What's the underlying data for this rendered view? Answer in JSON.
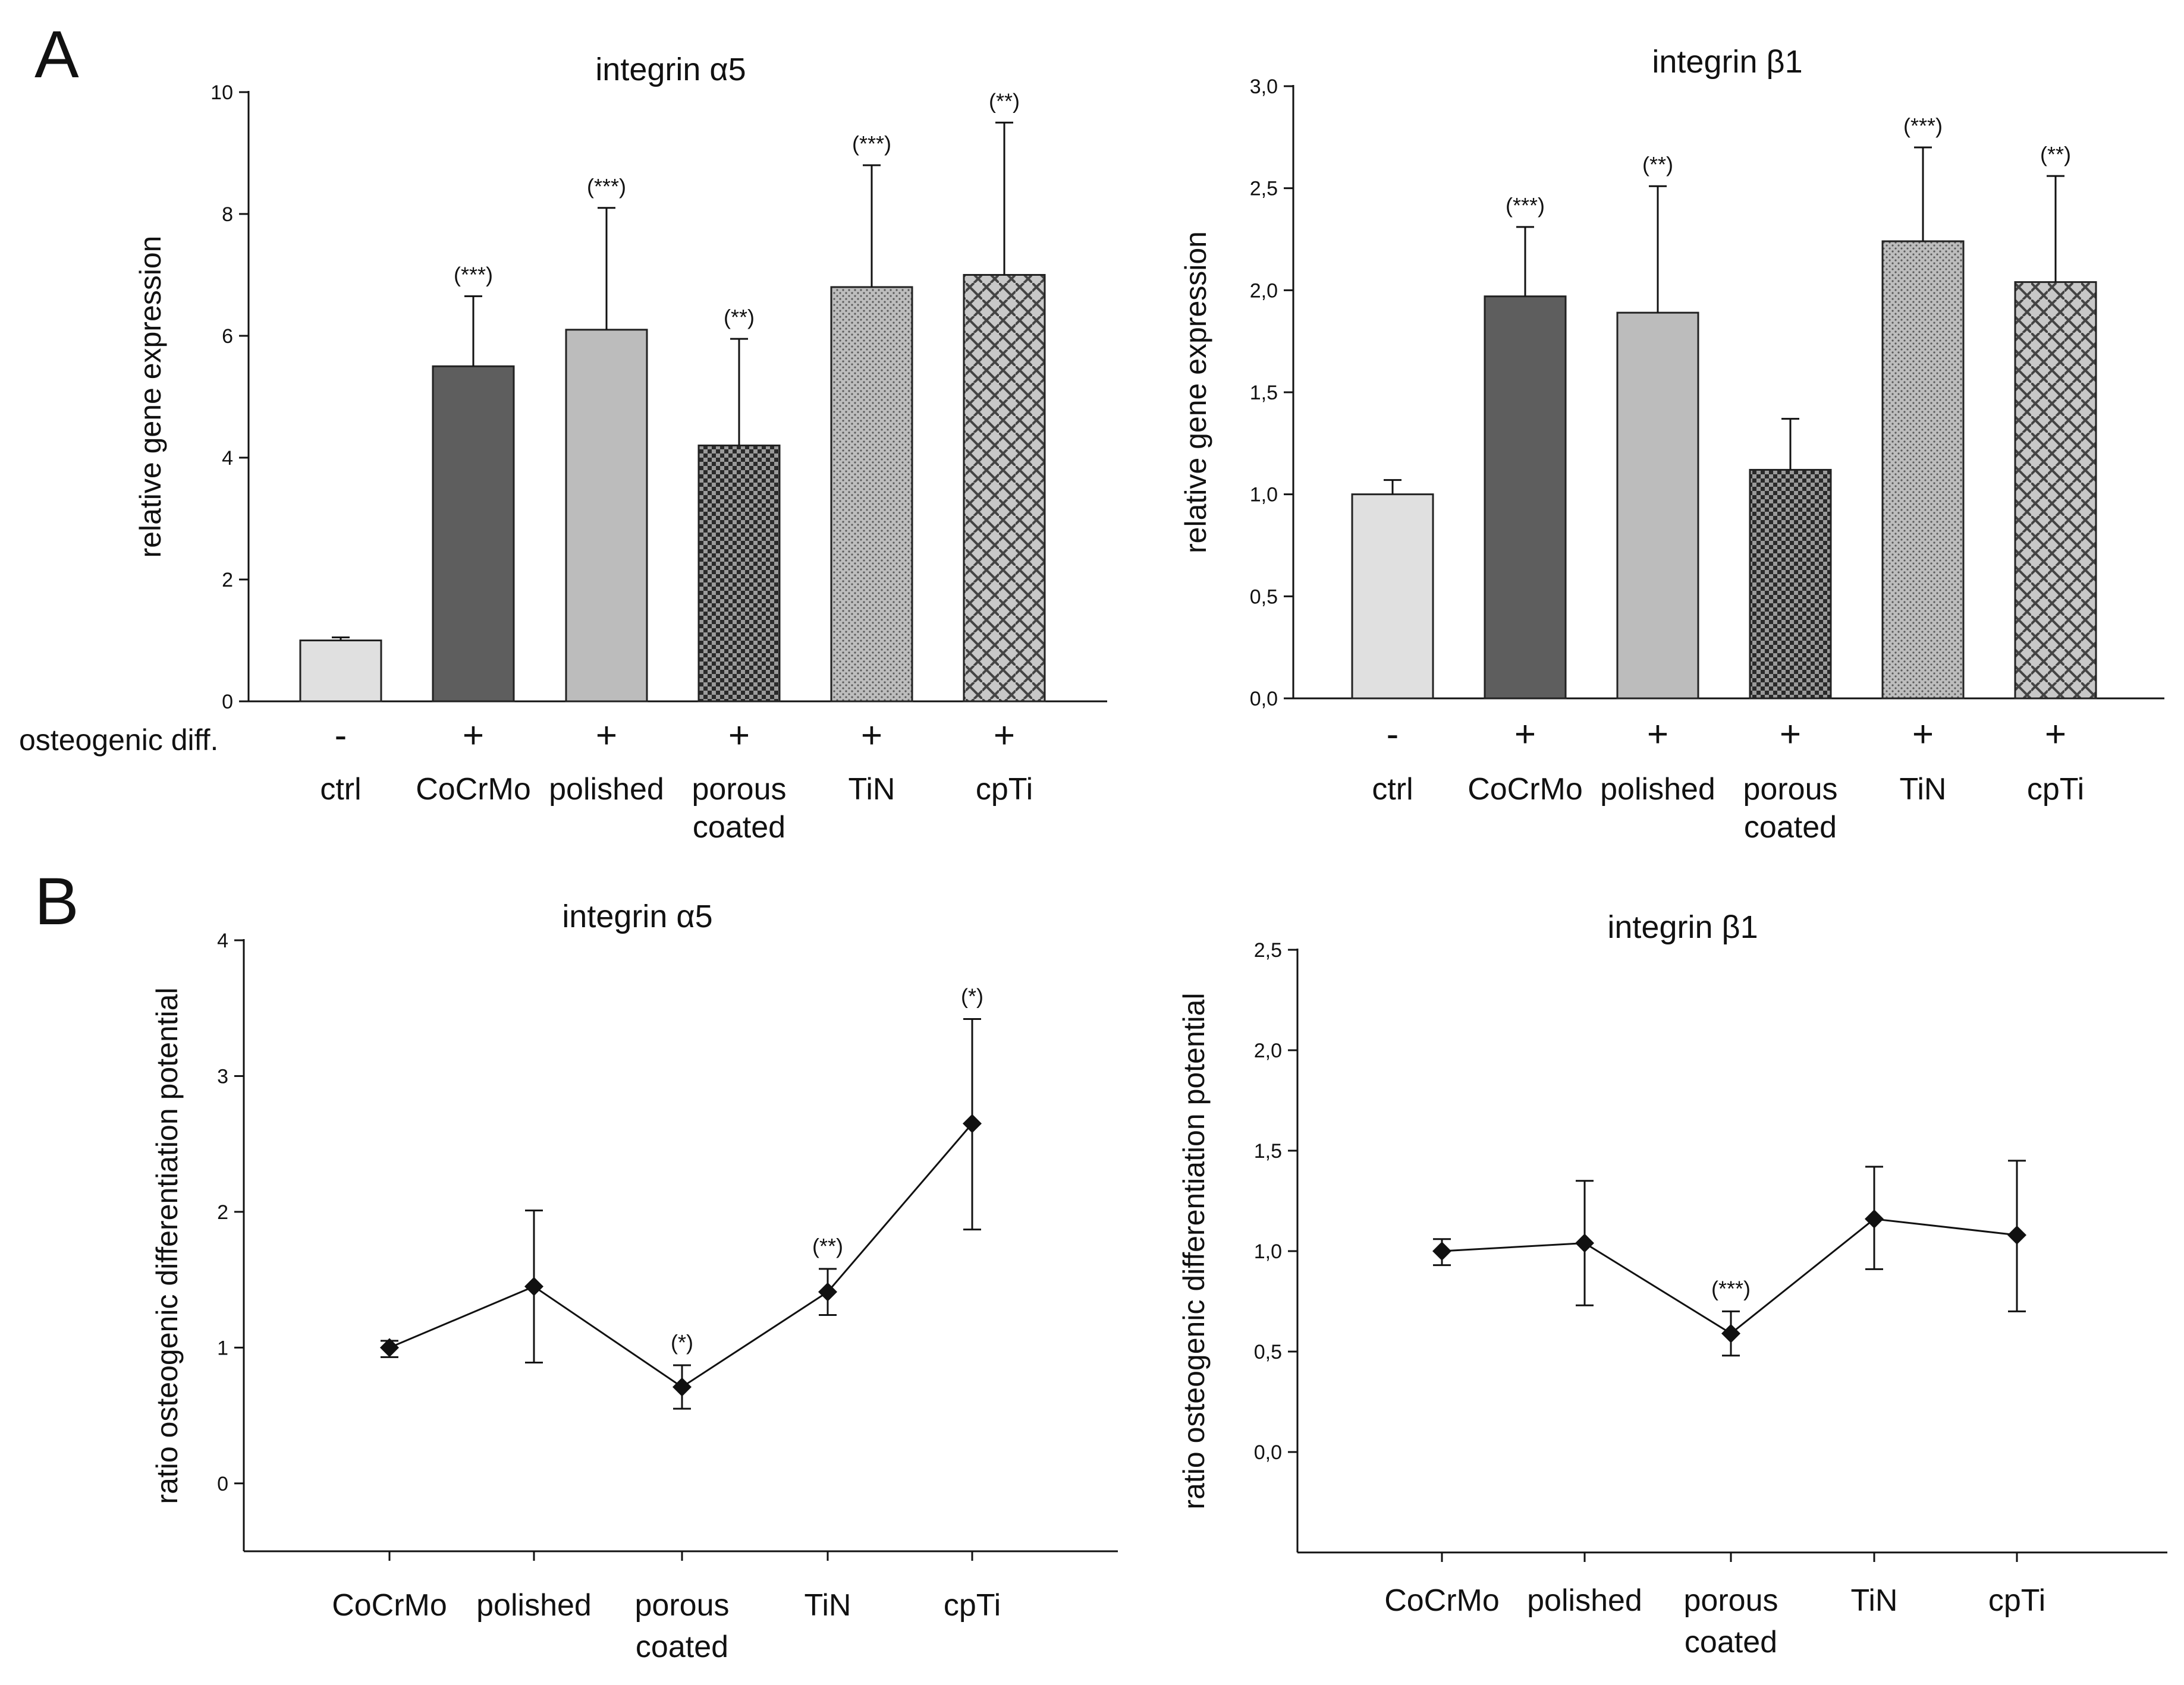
{
  "panels": {
    "a": "A",
    "b": "B"
  },
  "row_label": "osteogenic diff.",
  "colors": {
    "axis": "#111111",
    "text": "#111111",
    "bar_stroke": "#222222"
  },
  "chart_data": [
    {
      "type": "bar",
      "title": "integrin α5",
      "ylabel": "relative gene expression",
      "xlabel": "",
      "ylim": [
        0,
        10
      ],
      "yticks": [
        0,
        2,
        4,
        6,
        8,
        10
      ],
      "ytick_labels": [
        "0",
        "2",
        "4",
        "6",
        "8",
        "10"
      ],
      "categories": [
        "ctrl",
        "CoCrMo",
        "polished",
        "porous coated",
        "TiN",
        "cpTi"
      ],
      "category_lines": [
        [
          "ctrl"
        ],
        [
          "CoCrMo"
        ],
        [
          "polished"
        ],
        [
          "porous",
          "coated"
        ],
        [
          "TiN"
        ],
        [
          "cpTi"
        ]
      ],
      "osteogenic_diff": [
        "-",
        "+",
        "+",
        "+",
        "+",
        "+"
      ],
      "values": [
        1.0,
        5.5,
        6.1,
        4.2,
        6.8,
        7.0
      ],
      "errors": [
        0.05,
        1.15,
        2.0,
        1.75,
        2.0,
        2.5
      ],
      "significance": [
        "",
        "(***)",
        "(***)",
        "(**)",
        "(***)",
        "(**)"
      ],
      "fills": [
        "light-gray",
        "dark-gray",
        "mid-gray",
        "checker",
        "dots",
        "weave"
      ]
    },
    {
      "type": "bar",
      "title": "integrin β1",
      "ylabel": "relative gene expression",
      "xlabel": "",
      "ylim": [
        0,
        3
      ],
      "yticks": [
        0,
        0.5,
        1,
        1.5,
        2,
        2.5,
        3
      ],
      "ytick_labels": [
        "0,0",
        "0,5",
        "1,0",
        "1,5",
        "2,0",
        "2,5",
        "3,0"
      ],
      "categories": [
        "ctrl",
        "CoCrMo",
        "polished",
        "porous coated",
        "TiN",
        "cpTi"
      ],
      "category_lines": [
        [
          "ctrl"
        ],
        [
          "CoCrMo"
        ],
        [
          "polished"
        ],
        [
          "porous",
          "coated"
        ],
        [
          "TiN"
        ],
        [
          "cpTi"
        ]
      ],
      "osteogenic_diff": [
        "-",
        "+",
        "+",
        "+",
        "+",
        "+"
      ],
      "values": [
        1.0,
        1.97,
        1.89,
        1.12,
        2.24,
        2.04
      ],
      "errors": [
        0.07,
        0.34,
        0.62,
        0.25,
        0.46,
        0.52
      ],
      "significance": [
        "",
        "(***)",
        "(**)",
        "",
        "(***)",
        "(**)"
      ],
      "fills": [
        "light-gray",
        "dark-gray",
        "mid-gray",
        "checker",
        "dots",
        "weave"
      ]
    },
    {
      "type": "line",
      "title": "integrin α5",
      "ylabel": "ratio osteogenic differentiation potential",
      "xlabel": "",
      "ylim": [
        -0.5,
        4
      ],
      "yticks": [
        0,
        1,
        2,
        3,
        4
      ],
      "ytick_labels": [
        "0",
        "1",
        "2",
        "3",
        "4"
      ],
      "categories": [
        "CoCrMo",
        "polished",
        "porous coated",
        "TiN",
        "cpTi"
      ],
      "category_lines": [
        [
          "CoCrMo"
        ],
        [
          "polished"
        ],
        [
          "porous",
          "coated"
        ],
        [
          "TiN"
        ],
        [
          "cpTi"
        ]
      ],
      "values": [
        1.0,
        1.45,
        0.71,
        1.41,
        2.65
      ],
      "err_low": [
        0.93,
        0.89,
        0.55,
        1.24,
        1.87
      ],
      "err_high": [
        1.05,
        2.01,
        0.87,
        1.58,
        3.42
      ],
      "significance": [
        "",
        "",
        "(*)",
        "(**)",
        "(*)"
      ]
    },
    {
      "type": "line",
      "title": "integrin β1",
      "ylabel": "ratio osteogenic differentiation potential",
      "xlabel": "",
      "ylim": [
        -0.5,
        2.5
      ],
      "yticks": [
        0,
        0.5,
        1,
        1.5,
        2,
        2.5
      ],
      "ytick_labels": [
        "0,0",
        "0,5",
        "1,0",
        "1,5",
        "2,0",
        "2,5"
      ],
      "categories": [
        "CoCrMo",
        "polished",
        "porous coated",
        "TiN",
        "cpTi"
      ],
      "category_lines": [
        [
          "CoCrMo"
        ],
        [
          "polished"
        ],
        [
          "porous",
          "coated"
        ],
        [
          "TiN"
        ],
        [
          "cpTi"
        ]
      ],
      "values": [
        1.0,
        1.04,
        0.59,
        1.16,
        1.08
      ],
      "err_low": [
        0.93,
        0.73,
        0.48,
        0.91,
        0.7
      ],
      "err_high": [
        1.06,
        1.35,
        0.7,
        1.42,
        1.45
      ],
      "significance": [
        "",
        "",
        "(***)",
        "",
        ""
      ]
    }
  ]
}
